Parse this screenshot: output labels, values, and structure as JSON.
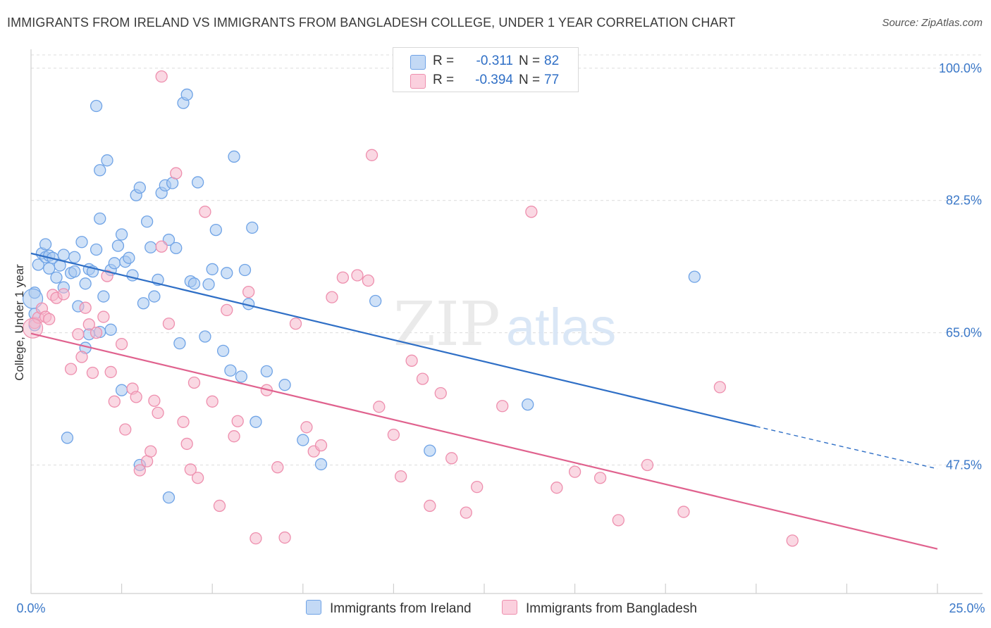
{
  "header": {
    "title": "IMMIGRANTS FROM IRELAND VS IMMIGRANTS FROM BANGLADESH COLLEGE, UNDER 1 YEAR CORRELATION CHART",
    "source": "Source: ZipAtlas.com"
  },
  "watermark": {
    "zip": "ZIP",
    "atlas": "atlas"
  },
  "legend": {
    "rows": [
      {
        "r_label": "R =",
        "r_value": "-0.311",
        "n_label": "N =",
        "n_value": "82",
        "color": "#a8c8f0"
      },
      {
        "r_label": "R =",
        "r_value": "-0.394",
        "n_label": "N =",
        "n_value": "77",
        "color": "#f6b8cc"
      }
    ]
  },
  "bottom_legend": {
    "ireland": "Immigrants from Ireland",
    "bangladesh": "Immigrants from Bangladesh"
  },
  "chart_data": {
    "type": "scatter",
    "title": "IMMIGRANTS FROM IRELAND VS IMMIGRANTS FROM BANGLADESH COLLEGE, UNDER 1 YEAR CORRELATION CHART",
    "ylabel": "College, Under 1 year",
    "xlabel": "",
    "x_ticks": [
      "0.0%",
      "25.0%"
    ],
    "y_ticks": [
      "100.0%",
      "82.5%",
      "65.0%",
      "47.5%"
    ],
    "y_tick_values": [
      100.0,
      82.5,
      65.0,
      47.5
    ],
    "xlim": [
      0,
      25
    ],
    "ylim": [
      30.5,
      102.5
    ],
    "grid": true,
    "legend_placement": "top-center",
    "series": [
      {
        "name": "Immigrants from Ireland",
        "color": "#6fa3e6",
        "fill": "#a8c8f0",
        "trend": {
          "x": [
            0,
            20
          ],
          "y": [
            75.5,
            52.6
          ],
          "dashed_to": [
            25,
            47.0
          ],
          "color": "#2f6fc6"
        },
        "points": [
          [
            0.1,
            66.0
          ],
          [
            0.1,
            70.3
          ],
          [
            0.2,
            74.0
          ],
          [
            0.3,
            75.5
          ],
          [
            0.4,
            76.7
          ],
          [
            0.4,
            75.0
          ],
          [
            0.5,
            73.5
          ],
          [
            0.5,
            75.2
          ],
          [
            0.6,
            74.9
          ],
          [
            0.7,
            72.3
          ],
          [
            0.8,
            73.9
          ],
          [
            0.9,
            75.3
          ],
          [
            0.9,
            71.0
          ],
          [
            1.1,
            72.9
          ],
          [
            1.2,
            75.0
          ],
          [
            1.2,
            73.1
          ],
          [
            1.3,
            68.5
          ],
          [
            1.4,
            77.0
          ],
          [
            1.5,
            71.5
          ],
          [
            1.6,
            64.8
          ],
          [
            1.5,
            63.0
          ],
          [
            1.6,
            73.4
          ],
          [
            1.7,
            73.1
          ],
          [
            1.8,
            76.0
          ],
          [
            1.9,
            65.1
          ],
          [
            1.9,
            80.1
          ],
          [
            1.9,
            86.5
          ],
          [
            2.0,
            69.8
          ],
          [
            2.1,
            87.8
          ],
          [
            2.2,
            73.3
          ],
          [
            2.3,
            74.2
          ],
          [
            2.4,
            76.5
          ],
          [
            2.5,
            78.0
          ],
          [
            2.6,
            74.4
          ],
          [
            2.7,
            74.9
          ],
          [
            2.8,
            72.6
          ],
          [
            2.9,
            83.2
          ],
          [
            3.0,
            84.2
          ],
          [
            3.1,
            68.9
          ],
          [
            3.2,
            79.7
          ],
          [
            3.3,
            76.3
          ],
          [
            3.4,
            69.8
          ],
          [
            3.5,
            72.0
          ],
          [
            3.6,
            83.5
          ],
          [
            3.7,
            84.5
          ],
          [
            3.8,
            77.3
          ],
          [
            3.9,
            84.8
          ],
          [
            4.0,
            76.2
          ],
          [
            4.1,
            63.6
          ],
          [
            4.2,
            95.4
          ],
          [
            4.3,
            96.5
          ],
          [
            4.4,
            71.8
          ],
          [
            4.5,
            71.5
          ],
          [
            4.6,
            84.9
          ],
          [
            4.8,
            64.5
          ],
          [
            4.9,
            71.4
          ],
          [
            5.0,
            73.4
          ],
          [
            5.1,
            78.6
          ],
          [
            5.3,
            62.6
          ],
          [
            5.4,
            72.9
          ],
          [
            5.5,
            60.0
          ],
          [
            5.6,
            88.3
          ],
          [
            5.8,
            59.2
          ],
          [
            5.9,
            73.3
          ],
          [
            6.0,
            68.8
          ],
          [
            6.1,
            78.9
          ],
          [
            6.2,
            53.2
          ],
          [
            6.5,
            59.9
          ],
          [
            7.0,
            58.1
          ],
          [
            7.5,
            50.8
          ],
          [
            8.0,
            47.6
          ],
          [
            9.5,
            69.2
          ],
          [
            11.0,
            49.4
          ],
          [
            13.7,
            55.5
          ],
          [
            18.3,
            72.4
          ],
          [
            3.0,
            47.5
          ],
          [
            3.8,
            43.2
          ],
          [
            2.5,
            57.4
          ],
          [
            1.0,
            51.1
          ],
          [
            2.2,
            65.4
          ],
          [
            1.8,
            95.0
          ],
          [
            0.1,
            67.5
          ]
        ]
      },
      {
        "name": "Immigrants from Bangladesh",
        "color": "#ee8fae",
        "fill": "#f6b8cc",
        "trend": {
          "x": [
            0,
            25
          ],
          "y": [
            64.9,
            36.4
          ],
          "color": "#e0628e"
        },
        "points": [
          [
            0.1,
            66.3
          ],
          [
            0.2,
            67.0
          ],
          [
            0.3,
            68.2
          ],
          [
            0.4,
            67.1
          ],
          [
            0.5,
            66.8
          ],
          [
            0.6,
            70.0
          ],
          [
            0.7,
            69.6
          ],
          [
            0.9,
            70.1
          ],
          [
            1.1,
            60.2
          ],
          [
            1.3,
            64.8
          ],
          [
            1.4,
            61.8
          ],
          [
            1.5,
            68.3
          ],
          [
            1.6,
            66.1
          ],
          [
            1.7,
            59.7
          ],
          [
            1.8,
            65.0
          ],
          [
            2.0,
            67.1
          ],
          [
            2.1,
            72.5
          ],
          [
            2.2,
            59.8
          ],
          [
            2.3,
            55.9
          ],
          [
            2.5,
            63.5
          ],
          [
            2.6,
            52.2
          ],
          [
            2.8,
            57.6
          ],
          [
            2.9,
            56.5
          ],
          [
            3.0,
            46.8
          ],
          [
            3.2,
            48.0
          ],
          [
            3.3,
            49.3
          ],
          [
            3.4,
            56.0
          ],
          [
            3.5,
            54.4
          ],
          [
            3.6,
            76.4
          ],
          [
            3.8,
            66.2
          ],
          [
            4.0,
            86.1
          ],
          [
            4.2,
            53.2
          ],
          [
            4.3,
            50.3
          ],
          [
            4.4,
            46.9
          ],
          [
            4.5,
            58.4
          ],
          [
            4.6,
            45.8
          ],
          [
            4.8,
            81.0
          ],
          [
            5.0,
            55.9
          ],
          [
            5.2,
            42.1
          ],
          [
            5.4,
            68.0
          ],
          [
            5.6,
            51.3
          ],
          [
            5.7,
            53.3
          ],
          [
            6.0,
            70.4
          ],
          [
            6.2,
            37.8
          ],
          [
            6.5,
            57.4
          ],
          [
            6.8,
            47.2
          ],
          [
            7.0,
            37.9
          ],
          [
            7.3,
            66.2
          ],
          [
            7.6,
            52.5
          ],
          [
            7.8,
            49.3
          ],
          [
            8.0,
            50.1
          ],
          [
            8.3,
            69.7
          ],
          [
            8.6,
            72.3
          ],
          [
            9.0,
            72.6
          ],
          [
            9.3,
            71.9
          ],
          [
            9.6,
            55.2
          ],
          [
            10.0,
            51.5
          ],
          [
            10.2,
            46.0
          ],
          [
            10.5,
            61.3
          ],
          [
            10.8,
            58.9
          ],
          [
            11.0,
            42.1
          ],
          [
            11.3,
            57.0
          ],
          [
            11.6,
            48.4
          ],
          [
            12.0,
            41.2
          ],
          [
            12.3,
            44.6
          ],
          [
            13.0,
            55.3
          ],
          [
            13.8,
            81.0
          ],
          [
            14.5,
            44.5
          ],
          [
            15.0,
            46.6
          ],
          [
            15.7,
            45.8
          ],
          [
            16.2,
            40.2
          ],
          [
            17.0,
            47.5
          ],
          [
            18.0,
            41.3
          ],
          [
            19.0,
            57.8
          ],
          [
            21.0,
            37.5
          ],
          [
            9.4,
            88.5
          ],
          [
            3.6,
            98.9
          ]
        ]
      }
    ]
  }
}
